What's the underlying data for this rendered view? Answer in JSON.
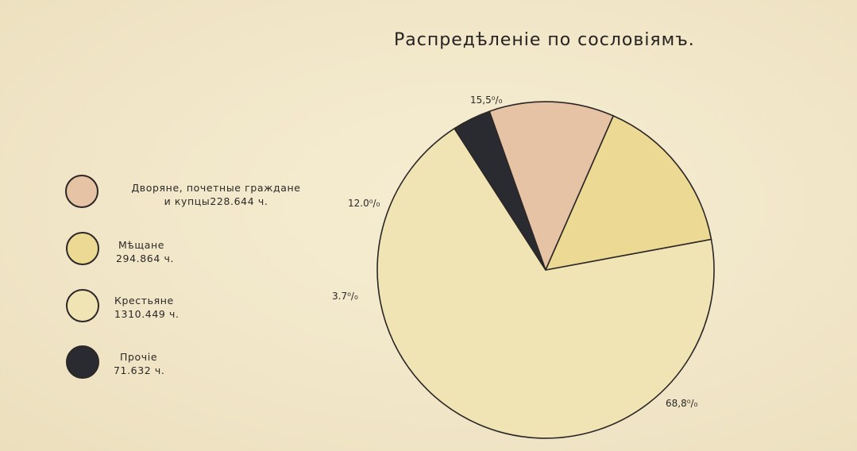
{
  "chart_data": {
    "type": "pie",
    "title": "Распредѣленіе по сословіямъ.",
    "slices": [
      {
        "name_line1": "Крестьяне",
        "name_line2": "1310.449 ч.",
        "value": 68.8,
        "label": "68,8⁰/₀",
        "color": "#f0e4b4"
      },
      {
        "name_line1": "Прочіе",
        "name_line2": "71.632 ч.",
        "value": 3.7,
        "label": "3.7⁰/₀",
        "color": "#2a2b31"
      },
      {
        "name_line1": "Дворяне, почетные граждане",
        "name_line2": "и купцы228.644 ч.",
        "value": 12.0,
        "label": "12.0⁰/₀",
        "color": "#e6c3a4"
      },
      {
        "name_line1": "Мѣщане",
        "name_line2": "294.864 ч.",
        "value": 15.5,
        "label": "15,5⁰/₀",
        "color": "#ecd994"
      }
    ],
    "legend_order": [
      2,
      3,
      0,
      1
    ]
  }
}
